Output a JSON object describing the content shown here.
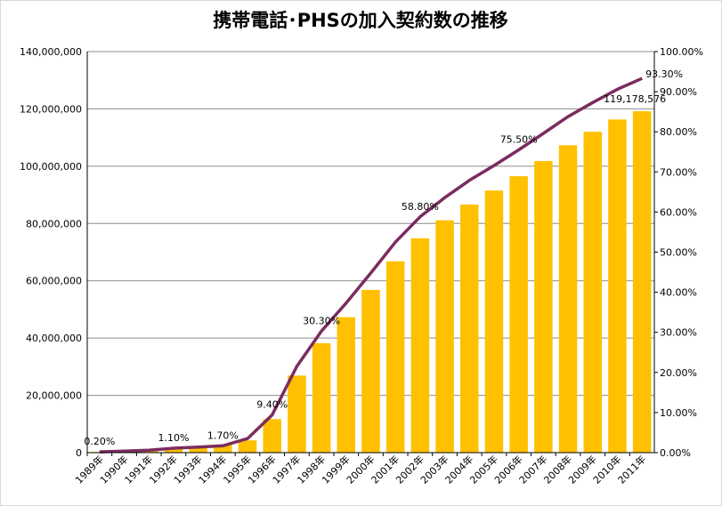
{
  "chart_data": {
    "type": "bar",
    "title": "携帯電話･PHSの加入契約数の推移",
    "categories": [
      "1989年",
      "1990年",
      "1991年",
      "1992年",
      "1993年",
      "1994年",
      "1995年",
      "1996年",
      "1997年",
      "1998年",
      "1999年",
      "2000年",
      "2001年",
      "2002年",
      "2003年",
      "2004年",
      "2005年",
      "2006年",
      "2007年",
      "2008年",
      "2009年",
      "2010年",
      "2011年"
    ],
    "series": [
      {
        "type": "bar",
        "axis": "left",
        "color": "#FFC000",
        "values": [
          240000,
          480000,
          700000,
          1300000,
          2100000,
          2800000,
          4300000,
          11700000,
          26900000,
          38200000,
          47300000,
          56800000,
          66800000,
          74800000,
          81100000,
          86600000,
          91500000,
          96500000,
          101800000,
          107300000,
          112000000,
          116300000,
          119178576
        ]
      },
      {
        "type": "line",
        "axis": "right",
        "color": "#7B2C5E",
        "values": [
          0.2,
          0.4,
          0.6,
          1.1,
          1.4,
          1.7,
          3.5,
          9.4,
          21.5,
          30.3,
          37.3,
          44.8,
          52.5,
          58.8,
          63.6,
          67.9,
          71.6,
          75.5,
          79.6,
          83.8,
          87.3,
          90.6,
          93.3
        ]
      }
    ],
    "y_left": {
      "min": 0,
      "max": 140000000,
      "ticks": [
        "0",
        "20,000,000",
        "40,000,000",
        "60,000,000",
        "80,000,000",
        "100,000,000",
        "120,000,000",
        "140,000,000"
      ]
    },
    "y_right": {
      "min": 0,
      "max": 100,
      "ticks": [
        "0.00%",
        "10.00%",
        "20.00%",
        "30.00%",
        "40.00%",
        "50.00%",
        "60.00%",
        "70.00%",
        "80.00%",
        "90.00%",
        "100.00%"
      ]
    },
    "data_labels": [
      {
        "series": 1,
        "index": 0,
        "text": "0.20%"
      },
      {
        "series": 1,
        "index": 3,
        "text": "1.10%"
      },
      {
        "series": 1,
        "index": 5,
        "text": "1.70%"
      },
      {
        "series": 1,
        "index": 7,
        "text": "9.40%"
      },
      {
        "series": 1,
        "index": 9,
        "text": "30.30%"
      },
      {
        "series": 1,
        "index": 13,
        "text": "58.80%"
      },
      {
        "series": 1,
        "index": 17,
        "text": "75.50%"
      },
      {
        "series": 1,
        "index": 22,
        "text": "93.30%"
      },
      {
        "series": 0,
        "index": 22,
        "text": "119,178,576"
      }
    ],
    "grid": true
  }
}
